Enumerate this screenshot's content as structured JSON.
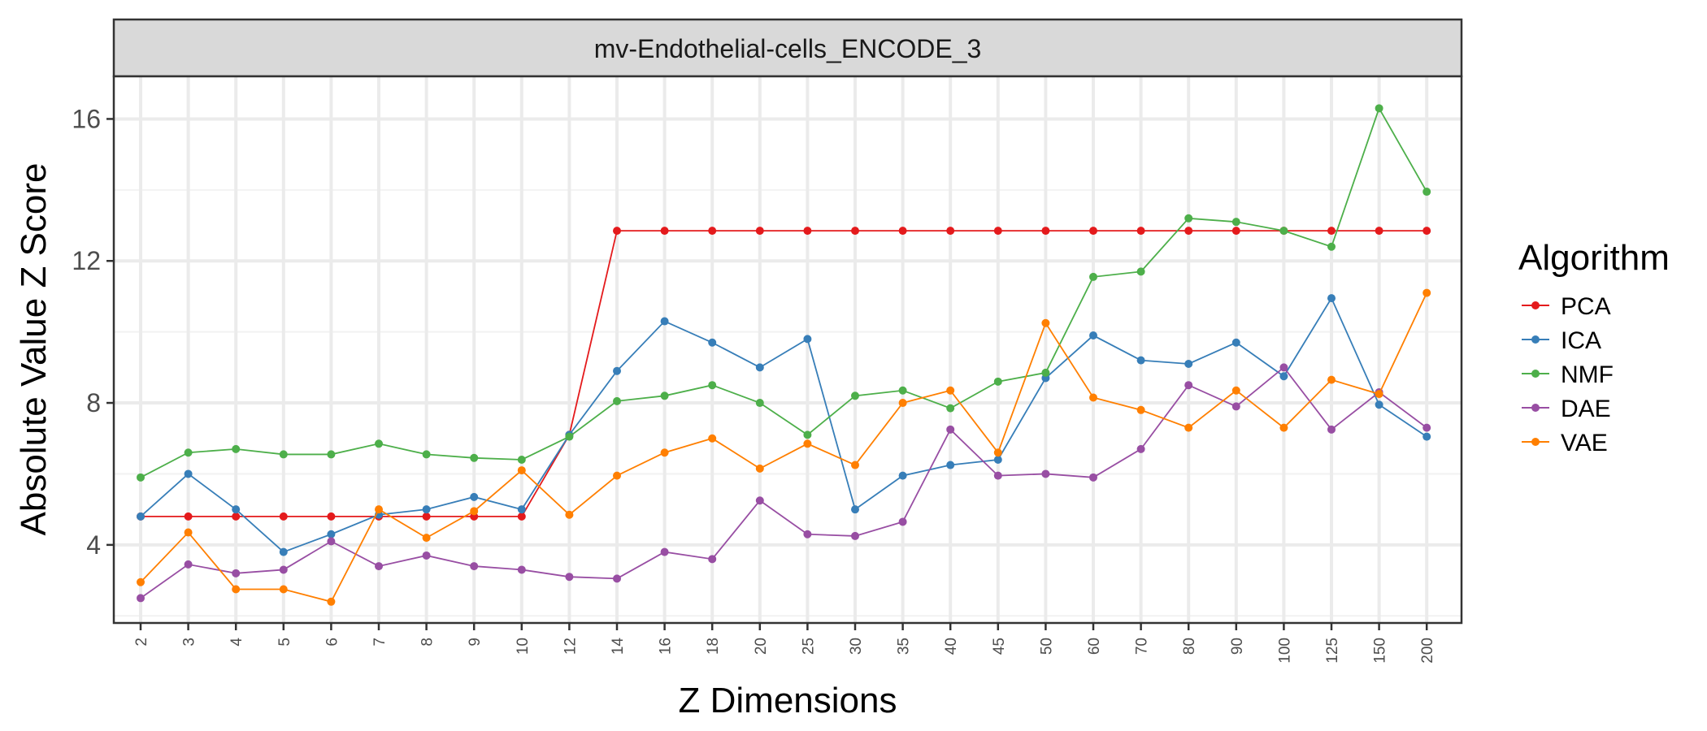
{
  "chart_data": {
    "type": "line",
    "title": "mv-Endothelial-cells_ENCODE_3",
    "xlabel": "Z Dimensions",
    "ylabel": "Absolute Value Z Score",
    "categories": [
      "2",
      "3",
      "4",
      "5",
      "6",
      "7",
      "8",
      "9",
      "10",
      "12",
      "14",
      "16",
      "18",
      "20",
      "25",
      "30",
      "35",
      "40",
      "45",
      "50",
      "60",
      "70",
      "80",
      "90",
      "100",
      "125",
      "150",
      "200"
    ],
    "yticks": [
      "4",
      "8",
      "12",
      "16"
    ],
    "ylim": [
      1.8,
      17.2
    ],
    "grid": true,
    "legend": {
      "title": "Algorithm",
      "placement": "right"
    },
    "series": [
      {
        "name": "PCA",
        "color": "#e41a1c",
        "values": [
          4.8,
          4.8,
          4.8,
          4.8,
          4.8,
          4.8,
          4.8,
          4.8,
          4.8,
          7.1,
          12.85,
          12.85,
          12.85,
          12.85,
          12.85,
          12.85,
          12.85,
          12.85,
          12.85,
          12.85,
          12.85,
          12.85,
          12.85,
          12.85,
          12.85,
          12.85,
          12.85,
          12.85
        ]
      },
      {
        "name": "ICA",
        "color": "#377eb8",
        "values": [
          4.8,
          6.0,
          5.0,
          3.8,
          4.3,
          4.85,
          5.0,
          5.35,
          5.0,
          7.1,
          8.9,
          10.3,
          9.7,
          9.0,
          9.8,
          5.0,
          5.95,
          6.25,
          6.4,
          8.7,
          9.9,
          9.2,
          9.1,
          9.7,
          8.75,
          10.95,
          7.95,
          7.05
        ]
      },
      {
        "name": "NMF",
        "color": "#4daf4a",
        "values": [
          5.9,
          6.6,
          6.7,
          6.55,
          6.55,
          6.85,
          6.55,
          6.45,
          6.4,
          7.05,
          8.05,
          8.2,
          8.5,
          8.0,
          7.1,
          8.2,
          8.35,
          7.85,
          8.6,
          8.85,
          11.55,
          11.7,
          13.2,
          13.1,
          12.85,
          12.4,
          16.3,
          13.95
        ]
      },
      {
        "name": "DAE",
        "color": "#984ea3",
        "values": [
          2.5,
          3.45,
          3.2,
          3.3,
          4.1,
          3.4,
          3.7,
          3.4,
          3.3,
          3.1,
          3.05,
          3.8,
          3.6,
          5.25,
          4.3,
          4.25,
          4.65,
          7.25,
          5.95,
          6.0,
          5.9,
          6.7,
          8.5,
          7.9,
          9.0,
          7.25,
          8.3,
          7.3
        ]
      },
      {
        "name": "VAE",
        "color": "#ff7f00",
        "values": [
          2.95,
          4.35,
          2.75,
          2.75,
          2.4,
          5.0,
          4.2,
          4.95,
          6.1,
          4.85,
          5.95,
          6.6,
          7.0,
          6.15,
          6.85,
          6.25,
          8.0,
          8.35,
          6.6,
          10.25,
          8.15,
          7.8,
          7.3,
          8.35,
          7.3,
          8.65,
          8.25,
          11.1
        ]
      }
    ]
  }
}
